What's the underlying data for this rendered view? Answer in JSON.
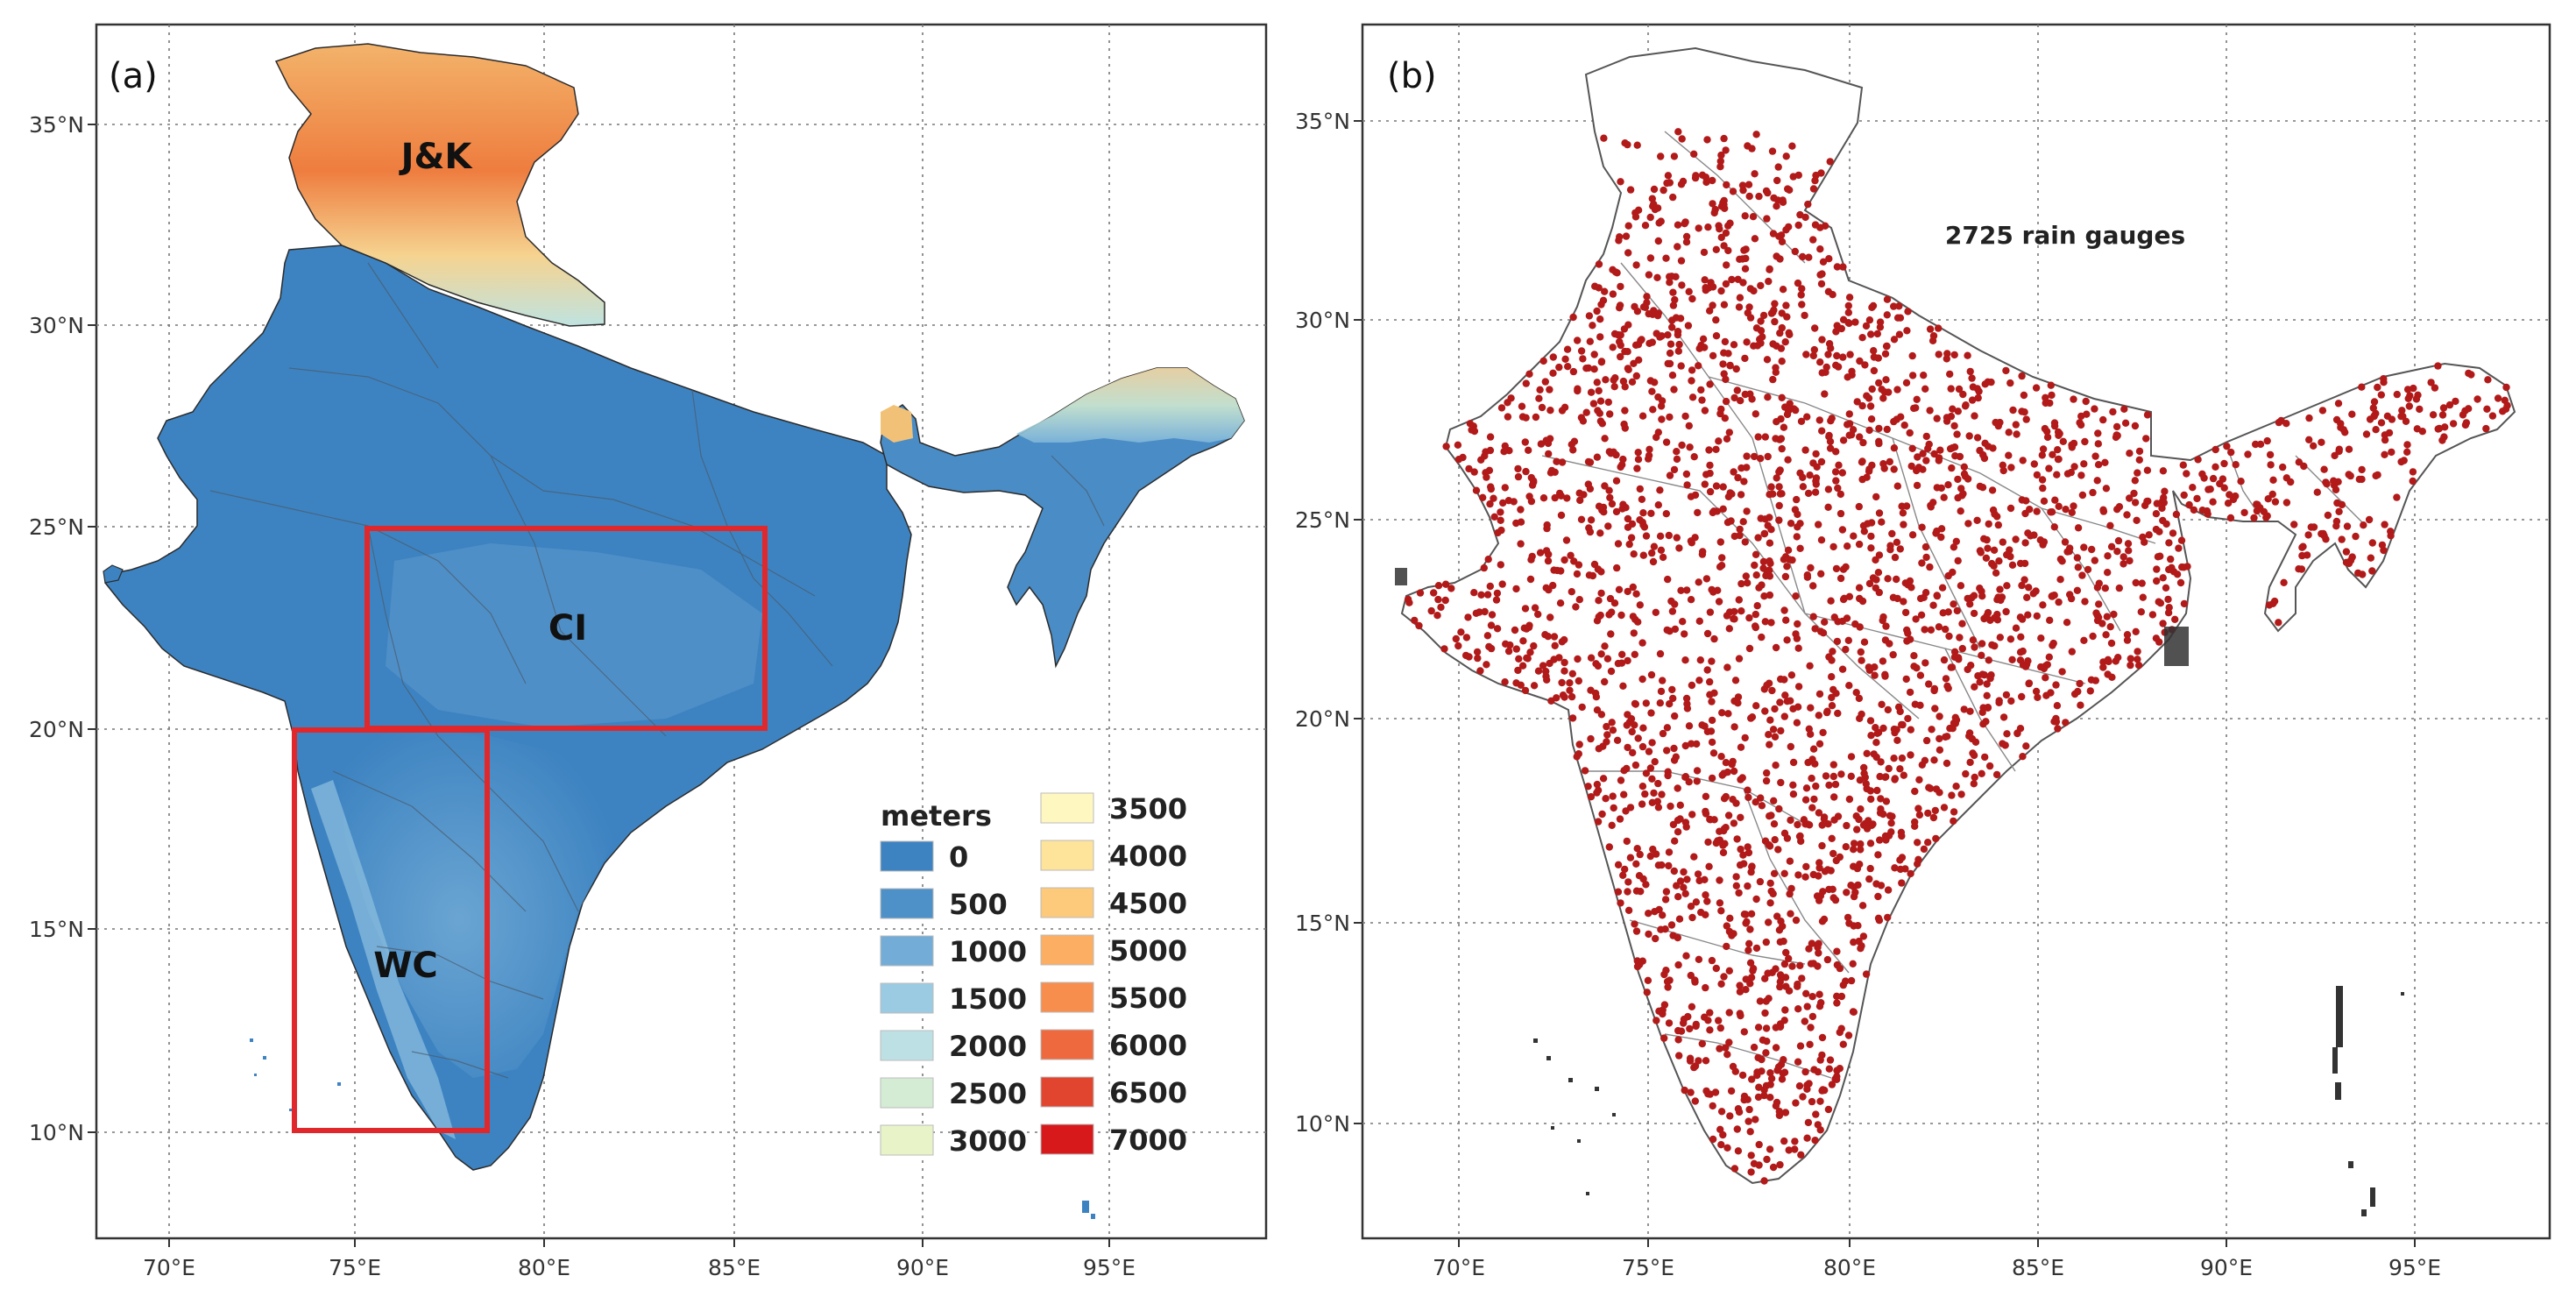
{
  "colors": {
    "lowland": "#3d83c1",
    "box": "#e0282c",
    "gauge": "#b21a1a",
    "outline": "#666666",
    "frame": "#333333"
  },
  "panel_a": {
    "label": "(a)",
    "x_ticks": [
      "70°E",
      "75°E",
      "80°E",
      "85°E",
      "90°E",
      "95°E"
    ],
    "y_ticks": [
      "35°N",
      "30°N",
      "25°N",
      "20°N",
      "15°N",
      "10°N"
    ],
    "regions": [
      {
        "label": "J&K"
      },
      {
        "label": "CI"
      },
      {
        "label": "WC"
      }
    ],
    "legend": {
      "title": "meters",
      "items": [
        {
          "value": "0",
          "color": "#3d83c1"
        },
        {
          "value": "500",
          "color": "#4e91c9"
        },
        {
          "value": "1000",
          "color": "#73acd6"
        },
        {
          "value": "1500",
          "color": "#9bcbe3"
        },
        {
          "value": "2000",
          "color": "#bde0e4"
        },
        {
          "value": "2500",
          "color": "#d4ecd4"
        },
        {
          "value": "3000",
          "color": "#e8f4c8"
        },
        {
          "value": "3500",
          "color": "#fff7c0"
        },
        {
          "value": "4000",
          "color": "#fee39a"
        },
        {
          "value": "4500",
          "color": "#fdc97a"
        },
        {
          "value": "5000",
          "color": "#fcae62"
        },
        {
          "value": "5500",
          "color": "#f78e4d"
        },
        {
          "value": "6000",
          "color": "#ee6a3e"
        },
        {
          "value": "6500",
          "color": "#e2452f"
        },
        {
          "value": "7000",
          "color": "#d7191c"
        }
      ]
    }
  },
  "panel_b": {
    "label": "(b)",
    "x_ticks": [
      "70°E",
      "75°E",
      "80°E",
      "85°E",
      "90°E",
      "95°E"
    ],
    "y_ticks": [
      "35°N",
      "30°N",
      "25°N",
      "20°N",
      "15°N",
      "10°N"
    ],
    "annotation": "2725 rain gauges"
  }
}
